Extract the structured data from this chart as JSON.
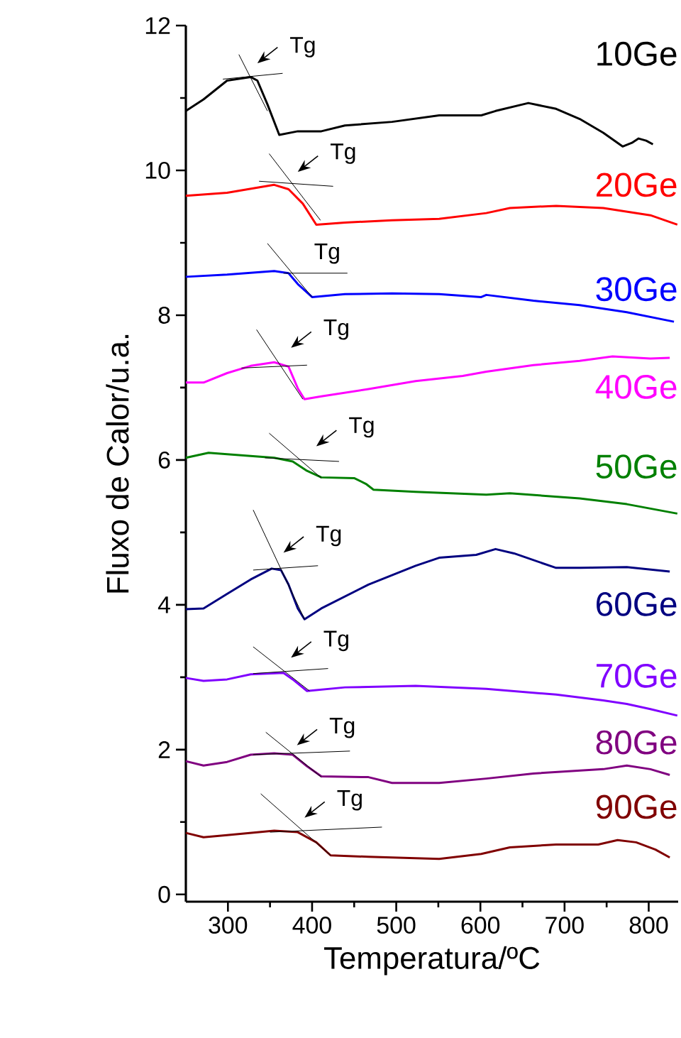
{
  "chart_data": {
    "type": "line",
    "xlabel": "Temperatura/ºC",
    "ylabel": "Fluxo de Calor/u.a.",
    "xlim": [
      250,
      835
    ],
    "ylim": [
      -0.1,
      12
    ],
    "xticks": [
      300,
      400,
      500,
      600,
      700,
      800
    ],
    "yticks": [
      0,
      2,
      4,
      6,
      8,
      10,
      12
    ],
    "legend": false,
    "line_style": "solid",
    "marker": "none",
    "series": [
      {
        "name": "10Ge",
        "color": "#000000",
        "x": [
          250,
          271,
          299,
          327,
          335,
          347,
          361,
          383,
          411,
          439,
          495,
          551,
          601,
          618,
          657,
          690,
          718,
          746,
          769,
          780,
          788,
          797,
          805
        ],
        "values": [
          10.82,
          10.98,
          11.24,
          11.29,
          11.24,
          10.91,
          10.49,
          10.54,
          10.54,
          10.62,
          10.67,
          10.76,
          10.76,
          10.82,
          10.93,
          10.85,
          10.71,
          10.52,
          10.33,
          10.38,
          10.44,
          10.41,
          10.36
        ]
      },
      {
        "name": "20Ge",
        "color": "#ff0000",
        "x": [
          250,
          299,
          355,
          372,
          389,
          405,
          439,
          495,
          551,
          607,
          635,
          690,
          746,
          802,
          834
        ],
        "values": [
          9.65,
          9.69,
          9.8,
          9.74,
          9.54,
          9.25,
          9.28,
          9.31,
          9.33,
          9.41,
          9.48,
          9.51,
          9.48,
          9.38,
          9.25
        ]
      },
      {
        "name": "30Ge",
        "color": "#0000ff",
        "x": [
          250,
          299,
          355,
          372,
          383,
          400,
          439,
          495,
          551,
          601,
          607,
          663,
          718,
          774,
          830
        ],
        "values": [
          8.53,
          8.56,
          8.61,
          8.58,
          8.43,
          8.25,
          8.29,
          8.3,
          8.29,
          8.25,
          8.28,
          8.2,
          8.14,
          8.04,
          7.91
        ]
      },
      {
        "name": "40Ge",
        "color": "#ff00ff",
        "x": [
          250,
          271,
          299,
          327,
          355,
          372,
          383,
          391,
          411,
          467,
          523,
          579,
          607,
          663,
          718,
          757,
          802,
          825
        ],
        "values": [
          7.07,
          7.07,
          7.2,
          7.3,
          7.35,
          7.29,
          6.99,
          6.84,
          6.88,
          6.98,
          7.09,
          7.16,
          7.22,
          7.31,
          7.37,
          7.43,
          7.4,
          7.41
        ]
      },
      {
        "name": "50Ge",
        "color": "#008000",
        "x": [
          250,
          277,
          299,
          355,
          377,
          394,
          411,
          450,
          464,
          473,
          523,
          607,
          635,
          718,
          774,
          834
        ],
        "values": [
          6.03,
          6.1,
          6.08,
          6.03,
          5.98,
          5.85,
          5.76,
          5.75,
          5.67,
          5.59,
          5.56,
          5.52,
          5.54,
          5.47,
          5.39,
          5.26
        ]
      },
      {
        "name": "60Ge",
        "color": "#000080",
        "x": [
          250,
          271,
          299,
          327,
          352,
          363,
          372,
          383,
          391,
          411,
          467,
          523,
          551,
          595,
          618,
          640,
          690,
          718,
          774,
          825
        ],
        "values": [
          3.94,
          3.95,
          4.15,
          4.35,
          4.5,
          4.48,
          4.28,
          3.95,
          3.8,
          3.95,
          4.28,
          4.54,
          4.65,
          4.69,
          4.77,
          4.71,
          4.51,
          4.51,
          4.52,
          4.46
        ]
      },
      {
        "name": "70Ge",
        "color": "#8000ff",
        "x": [
          250,
          271,
          299,
          327,
          366,
          377,
          394,
          439,
          523,
          607,
          690,
          746,
          774,
          802,
          834
        ],
        "values": [
          2.99,
          2.95,
          2.97,
          3.04,
          3.06,
          2.97,
          2.81,
          2.86,
          2.88,
          2.84,
          2.76,
          2.68,
          2.63,
          2.56,
          2.47
        ]
      },
      {
        "name": "80Ge",
        "color": "#800080",
        "x": [
          250,
          271,
          299,
          327,
          355,
          377,
          394,
          411,
          467,
          495,
          551,
          607,
          663,
          746,
          774,
          802,
          825
        ],
        "values": [
          1.84,
          1.78,
          1.83,
          1.93,
          1.95,
          1.93,
          1.77,
          1.63,
          1.62,
          1.54,
          1.54,
          1.6,
          1.67,
          1.73,
          1.78,
          1.73,
          1.65
        ]
      },
      {
        "name": "90Ge",
        "color": "#800000",
        "x": [
          250,
          271,
          299,
          355,
          383,
          405,
          422,
          467,
          551,
          601,
          635,
          690,
          740,
          763,
          785,
          808,
          825
        ],
        "values": [
          0.85,
          0.79,
          0.82,
          0.88,
          0.86,
          0.72,
          0.54,
          0.52,
          0.49,
          0.56,
          0.65,
          0.69,
          0.69,
          0.75,
          0.72,
          0.62,
          0.51
        ]
      },
      {
        "type": "line",
        "color": "#000000",
        "x": [
          313,
          347
        ],
        "values": [
          11.6,
          10.82
        ]
      },
      {
        "type": "line",
        "color": "#000000",
        "x": [
          294,
          365
        ],
        "values": [
          11.26,
          11.34
        ]
      },
      {
        "type": "line",
        "color": "#000000",
        "x": [
          349,
          410
        ],
        "values": [
          10.23,
          9.31
        ]
      },
      {
        "type": "line",
        "color": "#000000",
        "x": [
          337,
          425
        ],
        "values": [
          9.85,
          9.78
        ]
      },
      {
        "type": "line",
        "color": "#000000",
        "x": [
          347,
          400
        ],
        "values": [
          8.99,
          8.25
        ]
      },
      {
        "type": "line",
        "color": "#000000",
        "x": [
          366,
          442
        ],
        "values": [
          8.58,
          8.58
        ]
      },
      {
        "type": "line",
        "color": "#000000",
        "x": [
          334,
          389
        ],
        "values": [
          7.8,
          6.84
        ]
      },
      {
        "type": "line",
        "color": "#000000",
        "x": [
          316,
          394
        ],
        "values": [
          7.27,
          7.31
        ]
      },
      {
        "type": "line",
        "color": "#000000",
        "x": [
          349,
          411
        ],
        "values": [
          6.37,
          5.75
        ]
      },
      {
        "type": "line",
        "color": "#000000",
        "x": [
          344,
          432
        ],
        "values": [
          6.03,
          5.98
        ]
      },
      {
        "type": "line",
        "color": "#000000",
        "x": [
          330,
          391
        ],
        "values": [
          5.31,
          3.8
        ]
      },
      {
        "type": "line",
        "color": "#000000",
        "x": [
          330,
          407
        ],
        "values": [
          4.48,
          4.54
        ]
      },
      {
        "type": "line",
        "color": "#000000",
        "x": [
          330,
          397
        ],
        "values": [
          3.42,
          2.81
        ]
      },
      {
        "type": "line",
        "color": "#000000",
        "x": [
          330,
          419
        ],
        "values": [
          3.05,
          3.12
        ]
      },
      {
        "type": "line",
        "color": "#000000",
        "x": [
          345,
          411
        ],
        "values": [
          2.24,
          1.62
        ]
      },
      {
        "type": "line",
        "color": "#000000",
        "x": [
          330,
          445
        ],
        "values": [
          1.93,
          1.98
        ]
      },
      {
        "type": "line",
        "color": "#000000",
        "x": [
          339,
          422
        ],
        "values": [
          1.39,
          0.54
        ]
      },
      {
        "type": "line",
        "color": "#000000",
        "x": [
          350,
          483
        ],
        "values": [
          0.86,
          0.93
        ]
      }
    ],
    "annotations": [
      "Tg",
      "Tg",
      "Tg",
      "Tg",
      "Tg",
      "Tg",
      "Tg",
      "Tg",
      "Tg"
    ]
  }
}
